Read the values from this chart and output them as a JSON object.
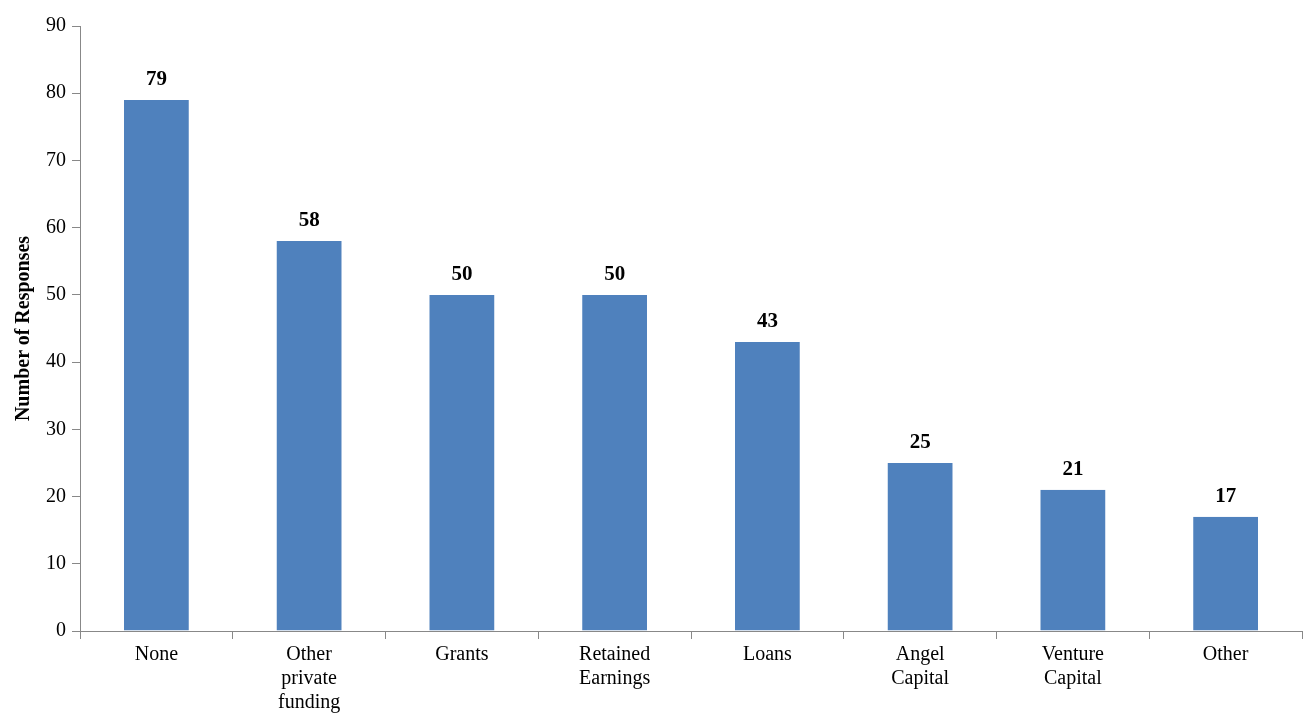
{
  "chart_data": {
    "type": "bar",
    "ylabel": "Number of Responses",
    "categories": [
      "None",
      "Other private funding",
      "Grants",
      "Retained Earnings",
      "Loans",
      "Angel Capital",
      "Venture Capital",
      "Other"
    ],
    "values": [
      79,
      58,
      50,
      50,
      43,
      25,
      21,
      17
    ],
    "color": "#4f81bd",
    "ylim": [
      0,
      90
    ],
    "yticks": [
      0,
      10,
      20,
      30,
      40,
      50,
      60,
      70,
      80,
      90
    ],
    "grid": false,
    "legend": false,
    "data_labels": true
  }
}
